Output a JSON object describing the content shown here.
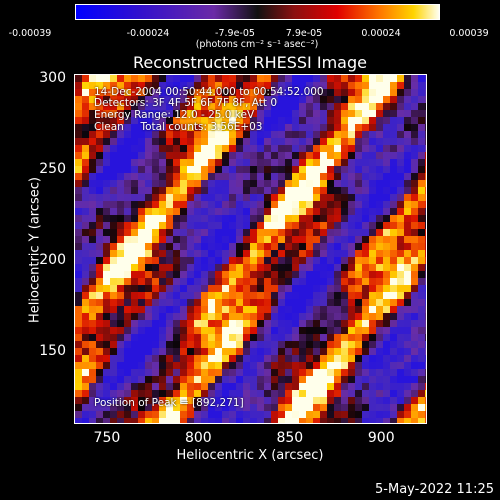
{
  "colorbar": {
    "ticks": [
      "-0.00039",
      "-0.00024",
      "-7.9e-05",
      "7.9e-05",
      "0.00024",
      "0.00039"
    ],
    "unit_label": "(photons cm⁻² s⁻¹ asec⁻²)"
  },
  "annotations": {
    "line1": "14-Dec-2004 00:50:44.000 to 00:54:52.000",
    "line2": "Detectors: 3F 4F 5F 6F 7F 8F, Att 0",
    "line3": "Energy Range: 12.0 - 25.0 keV",
    "line4": "Clean     Total counts: 3.56E+03",
    "peak": "Position of Peak = [892,271]"
  },
  "footer": "5-May-2022 11:25",
  "chart_data": {
    "type": "heatmap",
    "title": "Reconstructed RHESSI Image",
    "xlabel": "Heliocentric X (arcsec)",
    "ylabel": "Heliocentric Y (arcsec)",
    "xlim": [
      732,
      925
    ],
    "ylim": [
      110,
      302
    ],
    "x_ticks": [
      750,
      800,
      850,
      900
    ],
    "y_ticks": [
      150,
      200,
      250,
      300
    ],
    "value_range": [
      -0.00039,
      0.00039
    ],
    "colormap": "blue-purple-black-red-yellow-white",
    "peak": [
      892,
      271
    ]
  }
}
